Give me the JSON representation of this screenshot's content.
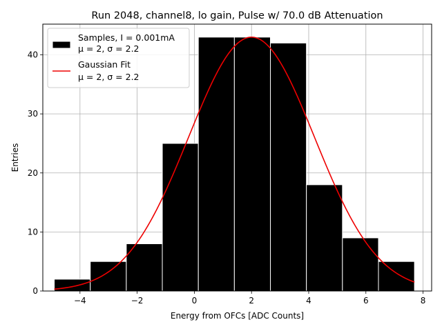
{
  "chart_data": {
    "type": "bar",
    "title": "Run 2048, channel8, lo gain, Pulse w/ 70.0 dB Attenuation",
    "xlabel": "Energy from OFCs [ADC Counts]",
    "ylabel": "Entries",
    "xlim": [
      -5.3,
      8.3
    ],
    "ylim": [
      0,
      45.2
    ],
    "grid": true,
    "xticks": [
      -4,
      -2,
      0,
      2,
      4,
      6,
      8
    ],
    "yticks": [
      0,
      10,
      20,
      30,
      40
    ],
    "bin_edges": [
      -4.9,
      -3.64,
      -2.38,
      -1.12,
      0.14,
      1.4,
      2.66,
      3.92,
      5.18,
      6.44,
      7.7
    ],
    "series": [
      {
        "name": "Samples, I = 0.001mA",
        "stats": "μ = 2, σ = 2.2",
        "values": [
          2,
          5,
          8,
          25,
          43,
          43,
          42,
          18,
          9,
          5
        ],
        "color": "#000000",
        "edgecolor": "#ffffff"
      },
      {
        "name": "Gaussian Fit",
        "stats": "μ = 2, σ = 2.2",
        "type": "line",
        "mu": 2.0,
        "sigma": 2.2,
        "amplitude": 43,
        "x_range": [
          -4.9,
          7.7
        ],
        "color": "#ee0000"
      }
    ],
    "legend": {
      "location": "top-left",
      "entries": [
        {
          "label": "Samples, I = 0.001mA",
          "sub": "μ = 2, σ = 2.2"
        },
        {
          "label": "Gaussian Fit",
          "sub": "μ = 2, σ = 2.2"
        }
      ]
    }
  }
}
